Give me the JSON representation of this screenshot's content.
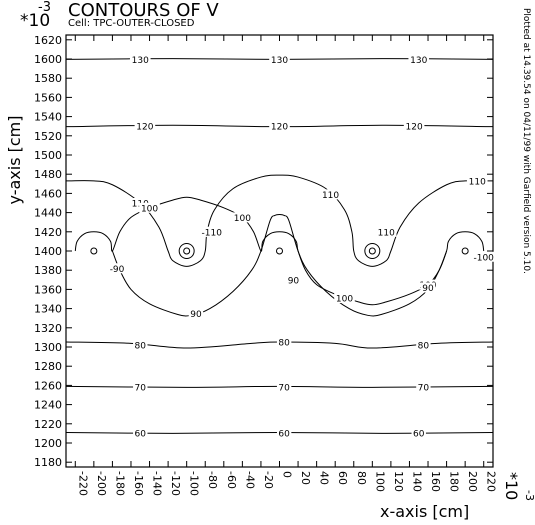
{
  "header": {
    "scale_prefix": "*10",
    "scale_exponent": "-3",
    "title": "CONTOURS OF V",
    "cell_label": "Cell: TPC-OUTER-CLOSED"
  },
  "side_note": "Plotted at 14.39.54 on 04/11/99 with Garfield version 5.10.",
  "chart_data": {
    "type": "contour",
    "title": "CONTOURS OF V",
    "subtitle": "Cell: TPC-OUTER-CLOSED",
    "xlabel": "x-axis [cm]",
    "ylabel": "y-axis [cm]",
    "x_scale_label": "*10",
    "x_scale_exponent": "-3",
    "y_scale_label": "*10",
    "y_scale_exponent": "-3",
    "xlim": [
      -230,
      230
    ],
    "ylim": [
      1175,
      1625
    ],
    "x_ticks": [
      -220,
      -200,
      -180,
      -160,
      -140,
      -120,
      -100,
      -80,
      -60,
      -40,
      -20,
      0,
      20,
      40,
      60,
      80,
      100,
      120,
      140,
      160,
      180,
      200,
      220
    ],
    "y_ticks": [
      1180,
      1200,
      1220,
      1240,
      1260,
      1280,
      1300,
      1320,
      1340,
      1360,
      1380,
      1400,
      1420,
      1440,
      1460,
      1480,
      1500,
      1520,
      1540,
      1560,
      1580,
      1600,
      1620
    ],
    "grid": false,
    "wires": [
      {
        "x": -200,
        "y": 1400,
        "ring": false
      },
      {
        "x": -100,
        "y": 1400,
        "ring": true
      },
      {
        "x": 0,
        "y": 1400,
        "ring": false
      },
      {
        "x": 100,
        "y": 1400,
        "ring": true
      },
      {
        "x": 200,
        "y": 1400,
        "ring": false
      }
    ],
    "contours": [
      {
        "level": "130",
        "points": [
          [
            -230,
            1599.6
          ],
          [
            -115,
            1600.4
          ],
          [
            0,
            1599.6
          ],
          [
            115,
            1600.4
          ],
          [
            230,
            1599.6
          ]
        ],
        "labels": [
          {
            "x": -150,
            "y": 1599.6
          },
          {
            "x": 0,
            "y": 1599.6
          },
          {
            "x": 150,
            "y": 1599.6
          }
        ]
      },
      {
        "level": "120",
        "points": [
          [
            -230,
            1529.5
          ],
          [
            -115,
            1531
          ],
          [
            0,
            1529.5
          ],
          [
            115,
            1531
          ],
          [
            230,
            1529.5
          ]
        ],
        "labels": [
          {
            "x": -145,
            "y": 1530
          },
          {
            "x": 0,
            "y": 1530
          },
          {
            "x": 145,
            "y": 1530
          }
        ]
      },
      {
        "level": "110",
        "points": [
          [
            -230,
            1473
          ],
          [
            -200,
            1473
          ],
          [
            -180,
            1469
          ],
          [
            -150,
            1450
          ],
          [
            -130,
            1425
          ],
          [
            -120,
            1400
          ],
          [
            -115,
            1390
          ],
          [
            -100,
            1384
          ],
          [
            -85,
            1390
          ],
          [
            -80,
            1400
          ],
          [
            -78,
            1420
          ],
          [
            -70,
            1443
          ],
          [
            -50,
            1465
          ],
          [
            -20,
            1477
          ],
          [
            0,
            1479
          ],
          [
            20,
            1477
          ],
          [
            50,
            1465
          ],
          [
            70,
            1443
          ],
          [
            78,
            1420
          ],
          [
            80,
            1400
          ],
          [
            85,
            1390
          ],
          [
            100,
            1384
          ],
          [
            115,
            1390
          ],
          [
            120,
            1400
          ],
          [
            130,
            1425
          ],
          [
            150,
            1450
          ],
          [
            180,
            1469
          ],
          [
            200,
            1473
          ],
          [
            230,
            1473
          ]
        ],
        "labels": [
          {
            "x": -150,
            "y": 1450
          },
          {
            "x": -78,
            "y": 1420
          },
          {
            "x": 55,
            "y": 1459
          },
          {
            "x": 115,
            "y": 1420
          },
          {
            "x": 213,
            "y": 1473
          }
        ]
      },
      {
        "level": "100",
        "points": [
          [
            -220,
            1400
          ],
          [
            -218,
            1410
          ],
          [
            -210,
            1418
          ],
          [
            -200,
            1420
          ],
          [
            -190,
            1418
          ],
          [
            -182,
            1410
          ],
          [
            -180,
            1400
          ],
          [
            -172,
            1420
          ],
          [
            -160,
            1435
          ],
          [
            -140,
            1445
          ],
          [
            -115,
            1453
          ],
          [
            -100,
            1456
          ],
          [
            -85,
            1453
          ],
          [
            -60,
            1445
          ],
          [
            -40,
            1435
          ],
          [
            -28,
            1420
          ],
          [
            -20,
            1400
          ],
          [
            -18,
            1410
          ],
          [
            -10,
            1418
          ],
          [
            0,
            1420
          ],
          [
            10,
            1418
          ],
          [
            18,
            1410
          ],
          [
            20,
            1400
          ],
          [
            28,
            1380
          ],
          [
            40,
            1365
          ],
          [
            60,
            1355
          ],
          [
            85,
            1347
          ],
          [
            100,
            1344
          ],
          [
            115,
            1347
          ],
          [
            140,
            1355
          ],
          [
            160,
            1365
          ],
          [
            172,
            1380
          ],
          [
            180,
            1400
          ],
          [
            182,
            1410
          ],
          [
            190,
            1418
          ],
          [
            200,
            1420
          ],
          [
            210,
            1418
          ],
          [
            218,
            1410
          ],
          [
            220,
            1400
          ]
        ],
        "labels": [
          {
            "x": -140,
            "y": 1445
          },
          {
            "x": -40,
            "y": 1435
          },
          {
            "x": 70,
            "y": 1351
          },
          {
            "x": 160,
            "y": 1365
          }
        ]
      },
      {
        "level": "90",
        "points": [
          [
            -180,
            1400
          ],
          [
            -172,
            1380
          ],
          [
            -160,
            1360
          ],
          [
            -140,
            1345
          ],
          [
            -110,
            1334
          ],
          [
            -95,
            1333
          ],
          [
            -75,
            1340
          ],
          [
            -50,
            1358
          ],
          [
            -30,
            1380
          ],
          [
            -20,
            1400
          ],
          [
            -10,
            1432
          ],
          [
            -5,
            1437
          ],
          [
            0,
            1438
          ],
          [
            5,
            1437
          ],
          [
            10,
            1432
          ],
          [
            20,
            1400
          ],
          [
            30,
            1380
          ],
          [
            50,
            1358
          ],
          [
            75,
            1340
          ],
          [
            95,
            1333
          ],
          [
            110,
            1334
          ],
          [
            140,
            1345
          ],
          [
            160,
            1360
          ],
          [
            172,
            1380
          ],
          [
            180,
            1400
          ]
        ],
        "labels": [
          {
            "x": -90,
            "y": 1335
          },
          {
            "x": 15,
            "y": 1370
          },
          {
            "x": 160,
            "y": 1362
          }
        ]
      },
      {
        "level": "80",
        "points": [
          [
            -230,
            1305.2
          ],
          [
            -160,
            1303.8
          ],
          [
            -100,
            1298.9
          ],
          [
            -30,
            1303.8
          ],
          [
            0,
            1305.2
          ],
          [
            60,
            1303.8
          ],
          [
            100,
            1298.9
          ],
          [
            170,
            1303.8
          ],
          [
            230,
            1305.2
          ]
        ],
        "labels": [
          {
            "x": -150,
            "y": 1302
          },
          {
            "x": 5,
            "y": 1305
          },
          {
            "x": 155,
            "y": 1302
          }
        ]
      },
      {
        "level": "70",
        "points": [
          [
            -230,
            1259
          ],
          [
            -100,
            1258
          ],
          [
            0,
            1259
          ],
          [
            100,
            1258
          ],
          [
            230,
            1259
          ]
        ],
        "labels": [
          {
            "x": -150,
            "y": 1258.5
          },
          {
            "x": 5,
            "y": 1258.5
          },
          {
            "x": 155,
            "y": 1258.5
          }
        ]
      },
      {
        "level": "60",
        "points": [
          [
            -230,
            1211
          ],
          [
            -115,
            1210
          ],
          [
            0,
            1211
          ],
          [
            115,
            1210
          ],
          [
            230,
            1211
          ]
        ],
        "labels": [
          {
            "x": -150,
            "y": 1210.5
          },
          {
            "x": 5,
            "y": 1210.5
          },
          {
            "x": 150,
            "y": 1210.5
          }
        ]
      }
    ],
    "edge_labels": [
      {
        "text": "-90",
        "x": -175,
        "y": 1382
      },
      {
        "text": "-110",
        "x": -73,
        "y": 1420
      },
      {
        "text": "-100",
        "x": 220,
        "y": 1394
      }
    ]
  }
}
